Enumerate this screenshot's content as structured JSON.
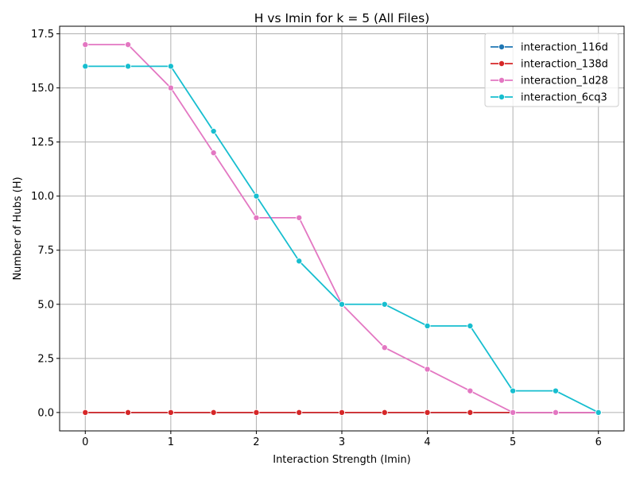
{
  "chart_data": {
    "type": "line",
    "title": "H vs Imin for k = 5 (All Files)",
    "xlabel": "Interaction Strength (Imin)",
    "ylabel": "Number of Hubs (H)",
    "xlim": [
      -0.3,
      6.3
    ],
    "ylim": [
      -0.85,
      17.85
    ],
    "xticks": [
      0,
      1,
      2,
      3,
      4,
      5,
      6
    ],
    "xtick_labels": [
      "0",
      "1",
      "2",
      "3",
      "4",
      "5",
      "6"
    ],
    "yticks": [
      0,
      2.5,
      5,
      7.5,
      10,
      12.5,
      15,
      17.5
    ],
    "ytick_labels": [
      "0.0",
      "2.5",
      "5.0",
      "7.5",
      "10.0",
      "12.5",
      "15.0",
      "17.5"
    ],
    "grid": true,
    "legend_position": "top-right",
    "x": [
      0,
      0.5,
      1,
      1.5,
      2,
      2.5,
      3,
      3.5,
      4,
      4.5,
      5,
      5.5,
      6
    ],
    "series": [
      {
        "name": "interaction_116d",
        "color": "#1f77b4",
        "values": [
          0,
          0,
          0,
          0,
          0,
          0,
          0,
          0,
          0,
          0,
          0,
          0,
          0
        ]
      },
      {
        "name": "interaction_138d",
        "color": "#d62728",
        "values": [
          0,
          0,
          0,
          0,
          0,
          0,
          0,
          0,
          0,
          0,
          0,
          0,
          0
        ]
      },
      {
        "name": "interaction_1d28",
        "color": "#e377c2",
        "values": [
          17,
          17,
          15,
          12,
          9,
          9,
          5,
          3,
          2,
          1,
          0,
          0,
          0
        ]
      },
      {
        "name": "interaction_6cq3",
        "color": "#17becf",
        "values": [
          16,
          16,
          16,
          13,
          10,
          7,
          5,
          5,
          4,
          4,
          1,
          1,
          0
        ]
      }
    ]
  }
}
